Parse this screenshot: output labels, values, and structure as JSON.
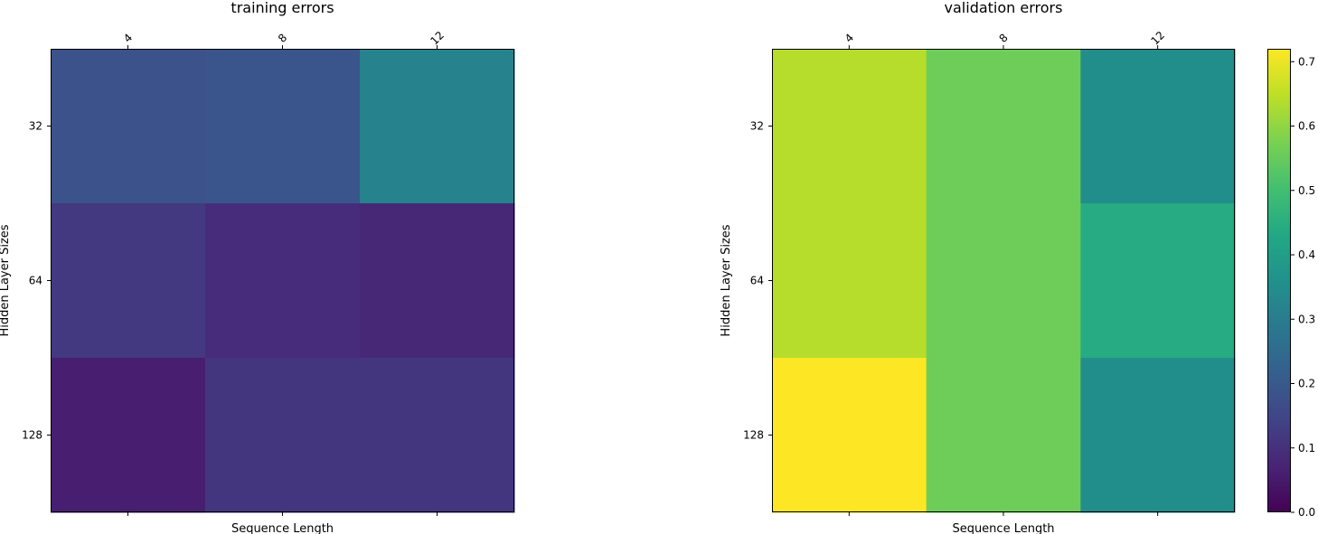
{
  "chart_data": [
    {
      "type": "heatmap",
      "title": "training errors",
      "xlabel": "Sequence Length",
      "ylabel": "Hidden Layer Sizes",
      "x": [
        "4",
        "8",
        "12"
      ],
      "y": [
        "32",
        "64",
        "128"
      ],
      "values": [
        [
          0.18,
          0.19,
          0.32
        ],
        [
          0.12,
          0.09,
          0.08
        ],
        [
          0.06,
          0.11,
          0.11
        ]
      ],
      "colormap": "viridis",
      "x_tick_position": "top",
      "x_tick_rotation": 45,
      "grid": false
    },
    {
      "type": "heatmap",
      "title": "validation errors",
      "xlabel": "Sequence Length",
      "ylabel": "Hidden Layer Sizes",
      "x": [
        "4",
        "8",
        "12"
      ],
      "y": [
        "32",
        "64",
        "128"
      ],
      "values": [
        [
          0.64,
          0.56,
          0.35
        ],
        [
          0.64,
          0.56,
          0.44
        ],
        [
          0.72,
          0.56,
          0.35
        ]
      ],
      "colormap": "viridis",
      "x_tick_position": "top",
      "x_tick_rotation": 45,
      "grid": false,
      "colorbar": {
        "min": 0.0,
        "max": 0.72,
        "ticks": [
          0.0,
          0.1,
          0.2,
          0.3,
          0.4,
          0.5,
          0.6,
          0.7
        ],
        "tick_labels": [
          "0.0",
          "0.1",
          "0.2",
          "0.3",
          "0.4",
          "0.5",
          "0.6",
          "0.7"
        ],
        "placement": "right"
      }
    }
  ]
}
